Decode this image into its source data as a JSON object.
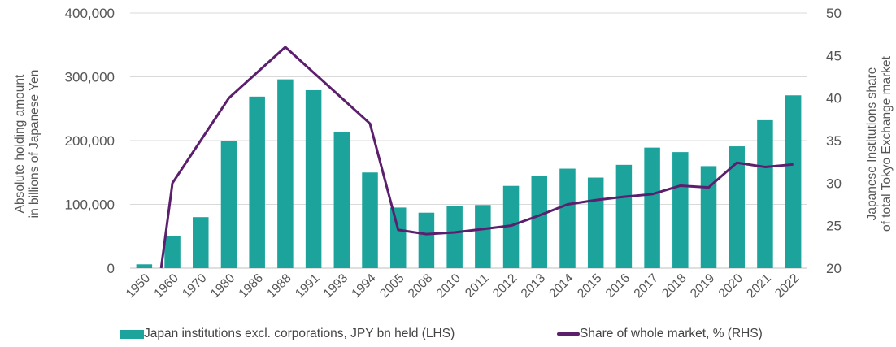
{
  "chart_data": {
    "type": "bar",
    "title": "",
    "categories": [
      "1950",
      "1960",
      "1970",
      "1980",
      "1986",
      "1988",
      "1991",
      "1993",
      "1994",
      "2005",
      "2008",
      "2010",
      "2011",
      "2012",
      "2013",
      "2014",
      "2015",
      "2016",
      "2017",
      "2018",
      "2019",
      "2020",
      "2021",
      "2022"
    ],
    "series": [
      {
        "name": "Japan institutions excl. corporations, JPY bn held (LHS)",
        "type": "bar",
        "axis": "left",
        "color": "#1BA39C",
        "values": [
          6000,
          50000,
          80000,
          200000,
          269000,
          296000,
          279000,
          213000,
          150000,
          95000,
          87000,
          97000,
          99000,
          129000,
          145000,
          156000,
          142000,
          162000,
          189000,
          182000,
          160000,
          191000,
          232000,
          271000
        ]
      },
      {
        "name": "Share of whole market, % (RHS)",
        "type": "line",
        "axis": "right",
        "color": "#5C1F6E",
        "values": [
          20,
          30,
          35,
          40,
          43,
          46,
          43,
          40,
          37,
          24.5,
          24,
          24.2,
          24.6,
          25,
          26.2,
          27.5,
          28,
          28.4,
          28.7,
          29.7,
          29.5,
          32.4,
          31.9,
          32.2
        ]
      }
    ],
    "left_axis": {
      "label_line1": "Absolute holding amount",
      "label_line2": "in billions of Japanese Yen",
      "ylim": [
        0,
        400000
      ],
      "ticks": [
        0,
        100000,
        200000,
        300000,
        400000
      ],
      "tick_labels": [
        "0",
        "100,000",
        "200,000",
        "300,000",
        "400,000"
      ]
    },
    "right_axis": {
      "label_line1": "Japanese Institutions share",
      "label_line2": "of total Tokyo Exchange market",
      "ylim": [
        20,
        50
      ],
      "ticks": [
        20,
        25,
        30,
        35,
        40,
        45,
        50
      ],
      "tick_labels": [
        "20",
        "25",
        "30",
        "35",
        "40",
        "45",
        "50"
      ]
    },
    "xlabel": "",
    "grid": true,
    "legend_position": "bottom"
  },
  "legend": {
    "bar_label": "Japan institutions excl. corporations, JPY bn held (LHS)",
    "line_label": "Share of whole market, % (RHS)"
  }
}
